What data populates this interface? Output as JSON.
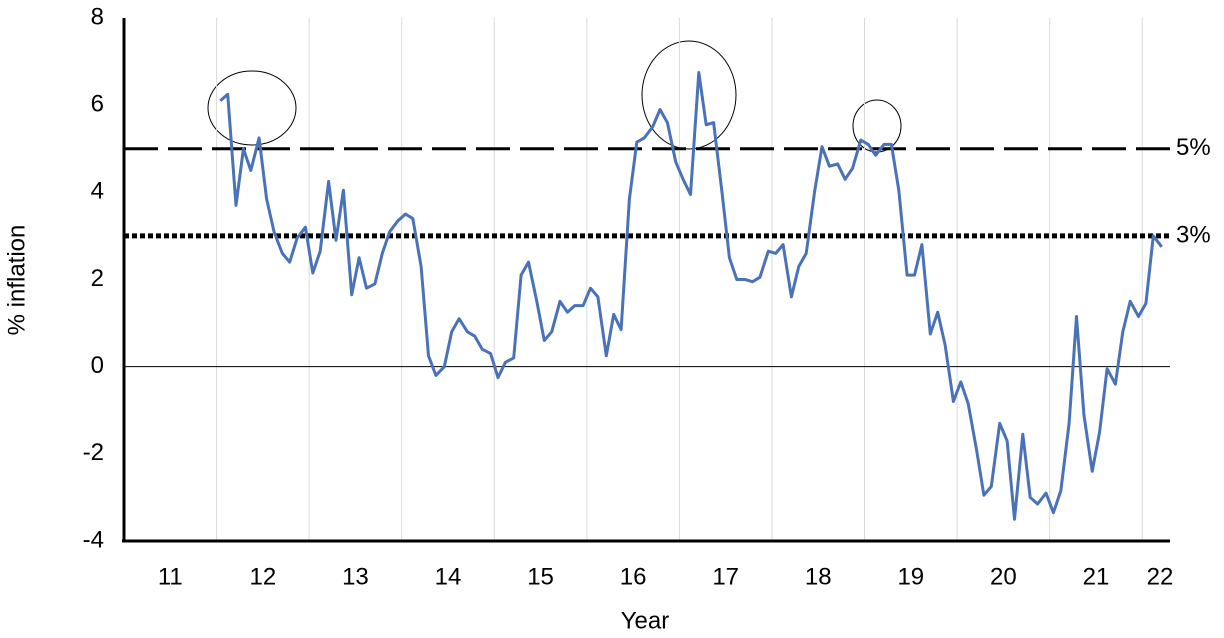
{
  "chart_data": {
    "type": "line",
    "xlabel": "Year",
    "ylabel": "% inflation",
    "xlim": [
      10.5,
      21.8
    ],
    "ylim": [
      -4,
      8
    ],
    "xticks": [
      11,
      12,
      13,
      14,
      15,
      16,
      17,
      18,
      19,
      20,
      21,
      22
    ],
    "yticks": [
      -4,
      -2,
      0,
      2,
      4,
      6,
      8
    ],
    "grid": true,
    "reference_lines": [
      {
        "value": 5,
        "label": "5%",
        "style": "dashed"
      },
      {
        "value": 3,
        "label": "3%",
        "style": "dotted"
      }
    ],
    "series": [
      {
        "color": "#4a72b8",
        "x": [
          11.54,
          11.62,
          11.71,
          11.79,
          11.87,
          11.96,
          12.04,
          12.12,
          12.21,
          12.29,
          12.37,
          12.46,
          12.54,
          12.62,
          12.71,
          12.79,
          12.87,
          12.96,
          13.04,
          13.12,
          13.21,
          13.29,
          13.37,
          13.46,
          13.54,
          13.62,
          13.71,
          13.79,
          13.87,
          13.96,
          14.04,
          14.12,
          14.21,
          14.29,
          14.37,
          14.46,
          14.54,
          14.62,
          14.71,
          14.79,
          14.87,
          14.96,
          15.04,
          15.12,
          15.21,
          15.29,
          15.37,
          15.46,
          15.54,
          15.62,
          15.71,
          15.79,
          15.87,
          15.96,
          16.04,
          16.12,
          16.21,
          16.29,
          16.37,
          16.46,
          16.54,
          16.62,
          16.71,
          16.79,
          16.87,
          16.96,
          17.04,
          17.12,
          17.21,
          17.29,
          17.37,
          17.46,
          17.54,
          17.62,
          17.71,
          17.79,
          17.87,
          17.96,
          18.04,
          18.12,
          18.21,
          18.29,
          18.37,
          18.46,
          18.54,
          18.62,
          18.71,
          18.79,
          18.87,
          18.96,
          19.04,
          19.12,
          19.21,
          19.29,
          19.37,
          19.46,
          19.54,
          19.62,
          19.71,
          19.79,
          19.87,
          19.96,
          20.04,
          20.12,
          20.21,
          20.29,
          20.37,
          20.46,
          20.54,
          20.62,
          20.71,
          20.79,
          20.87,
          20.96,
          21.04,
          21.12,
          21.21,
          21.29,
          21.37,
          21.46,
          21.54,
          21.62,
          21.71
        ],
        "values": [
          6.1,
          6.25,
          3.7,
          5.0,
          4.5,
          5.25,
          3.85,
          3.1,
          2.6,
          2.4,
          2.95,
          3.2,
          2.15,
          2.65,
          4.25,
          2.9,
          4.05,
          1.65,
          2.5,
          1.8,
          1.9,
          2.6,
          3.1,
          3.35,
          3.5,
          3.4,
          2.3,
          0.25,
          -0.2,
          0.0,
          0.8,
          1.1,
          0.8,
          0.7,
          0.4,
          0.3,
          -0.25,
          0.1,
          0.2,
          2.1,
          2.4,
          1.5,
          0.6,
          0.8,
          1.5,
          1.25,
          1.4,
          1.4,
          1.8,
          1.6,
          0.25,
          1.2,
          0.85,
          3.85,
          5.15,
          5.25,
          5.5,
          5.9,
          5.6,
          4.7,
          4.3,
          3.95,
          6.75,
          5.55,
          5.6,
          4.0,
          2.5,
          2.0,
          2.0,
          1.95,
          2.05,
          2.65,
          2.6,
          2.8,
          1.6,
          2.3,
          2.6,
          4.0,
          5.05,
          4.6,
          4.65,
          4.3,
          4.55,
          5.2,
          5.1,
          4.85,
          5.1,
          5.1,
          4.05,
          2.1,
          2.1,
          2.8,
          0.75,
          1.25,
          0.5,
          -0.8,
          -0.35,
          -0.85,
          -1.9,
          -2.95,
          -2.75,
          -1.3,
          -1.7,
          -3.5,
          -1.55,
          -3.0,
          -3.15,
          -2.9,
          -3.35,
          -2.85,
          -1.3,
          1.15,
          -1.1,
          -2.4,
          -1.5,
          -0.05,
          -0.4,
          0.8,
          1.5,
          1.15,
          1.45,
          3.0,
          2.75
        ]
      }
    ]
  }
}
